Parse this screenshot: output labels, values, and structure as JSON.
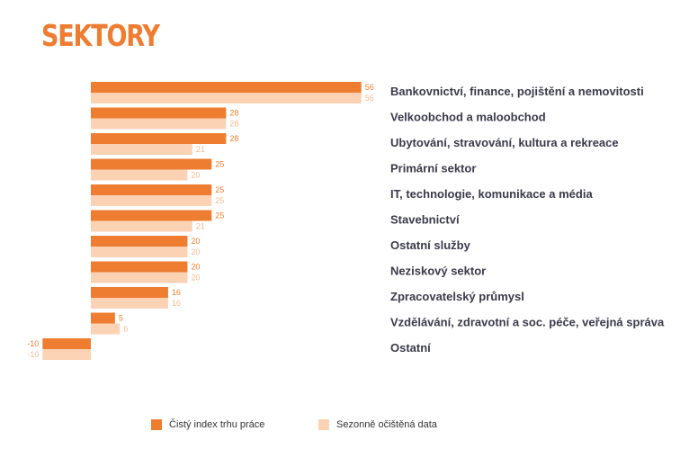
{
  "title": "SEKTORY",
  "colors": {
    "primary": "#ee7d31",
    "secondary": "#fbd2b4",
    "label": "#3a3a4a"
  },
  "legend": {
    "primary": "Čistý index trhu práce",
    "secondary": "Sezonně očištěná data"
  },
  "chart_data": {
    "type": "bar",
    "orientation": "horizontal",
    "categories": [
      "Bankovnictví, finance, pojištění a nemovitosti",
      "Velkoobchod a maloobchod",
      "Ubytování, stravování, kultura a rekreace",
      "Primární sektor",
      "IT, technologie, komunikace a média",
      "Stavebnictví",
      "Ostatní služby",
      "Neziskový sektor",
      "Zpracovatelský průmysl",
      "Vzdělávání, zdravotní a soc. péče, veřejná správa",
      "Ostatní"
    ],
    "series": [
      {
        "name": "Čistý index trhu práce",
        "values": [
          56,
          28,
          28,
          25,
          25,
          25,
          20,
          20,
          16,
          5,
          -10
        ]
      },
      {
        "name": "Sezonně očištěná data",
        "values": [
          56,
          28,
          21,
          20,
          25,
          21,
          20,
          20,
          16,
          6,
          -10
        ]
      }
    ],
    "legend_position": "bottom",
    "grid": false
  }
}
